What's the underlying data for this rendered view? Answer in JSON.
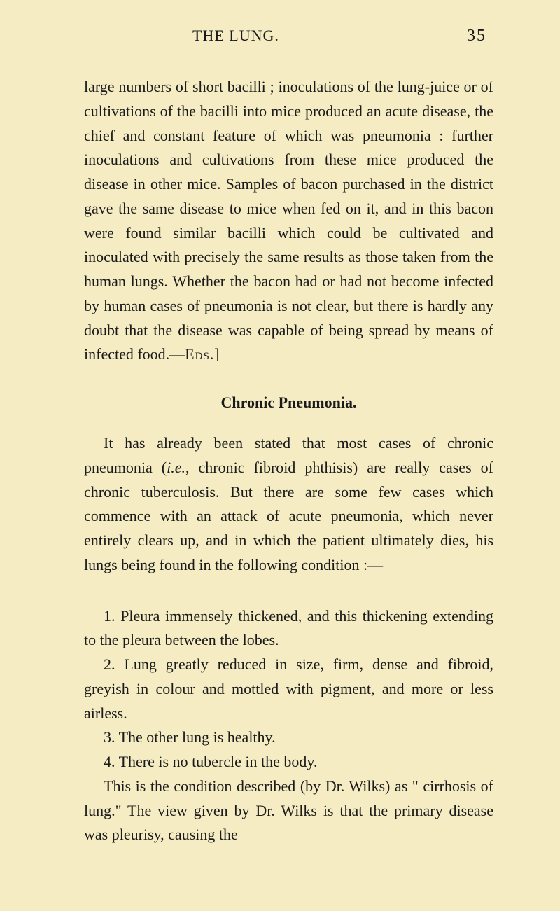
{
  "header": {
    "title": "THE LUNG.",
    "page_number": "35"
  },
  "paragraphs": {
    "p1": "large numbers of short bacilli ; inoculations of the lung-juice or of cultivations of the bacilli into mice produced an acute disease, the chief and constant feature of which was pneumonia : further inoculations and cultivations from these mice produced the disease in other mice. Samples of bacon purchased in the district gave the same disease to mice when fed on it, and in this bacon were found similar bacilli which could be cultivated and inoculated with precisely the same results as those taken from the human lungs. Whether the bacon had or had not become infected by human cases of pneumonia is not clear, but there is hardly any doubt that the disease was capable of being spread by means of infected food.—",
    "p1_eds": "Eds.",
    "p1_end": "]"
  },
  "section_title": "Chronic Pneumonia.",
  "section_paragraphs": {
    "intro_part1": "It has already been stated that most cases of chronic pneumonia (",
    "intro_ie": "i.e.",
    "intro_part2": ", chronic fibroid phthisis) are really cases of chronic tuberculosis. But there are some few cases which commence with an attack of acute pneumonia, which never entirely clears up, and in which the patient ultimately dies, his lungs being found in the following condition :—",
    "item1": "1. Pleura immensely thickened, and this thickening extending to the pleura between the lobes.",
    "item2": "2. Lung greatly reduced in size, firm, dense and fibroid, greyish in colour and mottled with pigment, and more or less airless.",
    "item3": "3. The other lung is healthy.",
    "item4": "4. There is no tubercle in the body.",
    "closing": "This is the condition described (by Dr. Wilks) as \" cirrhosis of lung.\" The view given by Dr. Wilks is that the primary disease was pleurisy, causing the"
  },
  "styles": {
    "background_color": "#f5ecc4",
    "text_color": "#1a1a1a",
    "body_fontsize": 22,
    "line_height": 1.58
  }
}
